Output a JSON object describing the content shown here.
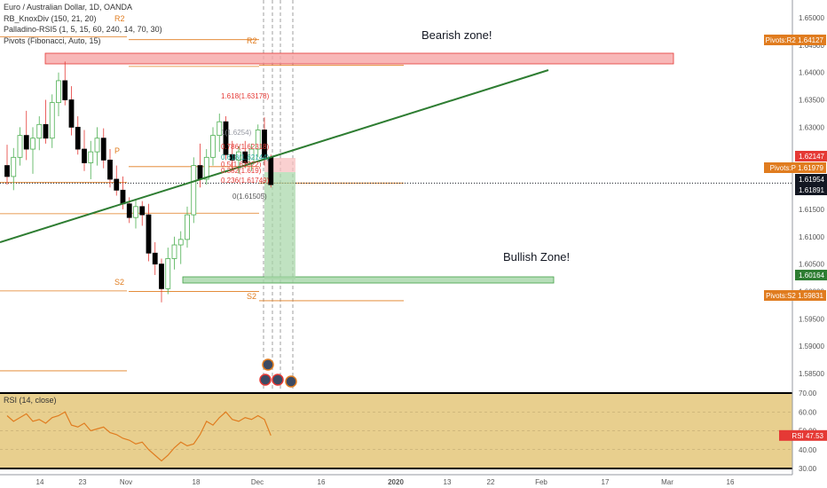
{
  "header": {
    "title": "Euro / Australian Dollar, 1D, OANDA",
    "indicators": [
      "RB_KnoxDiv (150, 21, 20)",
      "Palladino-RSI5 (1, 5, 15, 60, 240, 14, 70, 30)",
      "Pivots (Fibonacci, Auto, 15)"
    ]
  },
  "annotations": {
    "bearish": "Bearish zone!",
    "bullish": "Bullish Zone!"
  },
  "pivots": {
    "r2_left": "R2",
    "r2_right": "R2",
    "p": "P",
    "s2_left": "S2",
    "s2_right": "S2"
  },
  "fib_labels": [
    "1.618(1.63178)",
    "1(1.6254)",
    "0.786(1.62318)",
    "0.618(1.62144)",
    "0.5(1.62022)",
    "0.382(1.619)",
    "0.236(1.61749)",
    "0(1.61505)"
  ],
  "price_axis": {
    "ticks": [
      "1.65000",
      "1.64500",
      "1.64000",
      "1.63500",
      "1.63000",
      "1.62500",
      "1.62000",
      "1.61500",
      "1.61000",
      "1.60500",
      "1.60000",
      "1.59500",
      "1.59000",
      "1.58500"
    ],
    "badges": [
      {
        "text": "Pivots:R2  1.64127",
        "color": "#e07c1f"
      },
      {
        "text": "1.62147",
        "color": "#e53935"
      },
      {
        "text": "Pivots:P  1.61979",
        "color": "#e07c1f"
      },
      {
        "text": "1.61954",
        "color": "#131722"
      },
      {
        "text": "1.61891",
        "color": "#131722"
      },
      {
        "text": "1.60164",
        "color": "#2e7d32"
      },
      {
        "text": "Pivots:S2  1.59831",
        "color": "#e07c1f"
      }
    ]
  },
  "rsi": {
    "label": "RSI (14, close)",
    "ticks": [
      "70.00",
      "60.00",
      "50.00",
      "40.00",
      "30.00"
    ],
    "badge": "RSI  47.53",
    "badge_color": "#e53935"
  },
  "time_axis": {
    "labels": [
      "14",
      "23",
      "Nov",
      "18",
      "Dec",
      "16",
      "2020",
      "13",
      "22",
      "Feb",
      "17",
      "Mar",
      "16"
    ]
  },
  "chart_data": {
    "type": "candlestick",
    "symbol": "Euro / Australian Dollar",
    "ylim": [
      1.5825,
      1.6545
    ],
    "candles": [
      [
        1.623,
        1.6268,
        1.6195,
        1.621
      ],
      [
        1.621,
        1.6262,
        1.6185,
        1.6245
      ],
      [
        1.6245,
        1.63,
        1.623,
        1.6285
      ],
      [
        1.6285,
        1.633,
        1.624,
        1.626
      ],
      [
        1.626,
        1.63,
        1.6215,
        1.628
      ],
      [
        1.628,
        1.632,
        1.6258,
        1.6305
      ],
      [
        1.6305,
        1.635,
        1.627,
        1.628
      ],
      [
        1.628,
        1.636,
        1.6262,
        1.6345
      ],
      [
        1.6345,
        1.64,
        1.632,
        1.6385
      ],
      [
        1.6385,
        1.642,
        1.634,
        1.635
      ],
      [
        1.635,
        1.6375,
        1.6285,
        1.63
      ],
      [
        1.63,
        1.632,
        1.625,
        1.626
      ],
      [
        1.626,
        1.6295,
        1.622,
        1.6235
      ],
      [
        1.6235,
        1.6275,
        1.6205,
        1.6255
      ],
      [
        1.6255,
        1.63,
        1.623,
        1.628
      ],
      [
        1.628,
        1.6298,
        1.6225,
        1.624
      ],
      [
        1.624,
        1.626,
        1.619,
        1.6205
      ],
      [
        1.6205,
        1.623,
        1.6175,
        1.6185
      ],
      [
        1.6185,
        1.621,
        1.615,
        1.616
      ],
      [
        1.616,
        1.6172,
        1.6125,
        1.6135
      ],
      [
        1.6135,
        1.6168,
        1.6115,
        1.6155
      ],
      [
        1.6155,
        1.6165,
        1.612,
        1.614
      ],
      [
        1.614,
        1.616,
        1.6055,
        1.607
      ],
      [
        1.607,
        1.609,
        1.603,
        1.605
      ],
      [
        1.605,
        1.606,
        1.598,
        1.6005
      ],
      [
        1.6005,
        1.608,
        1.5995,
        1.606
      ],
      [
        1.606,
        1.61,
        1.604,
        1.6085
      ],
      [
        1.6085,
        1.611,
        1.605,
        1.6095
      ],
      [
        1.6095,
        1.6155,
        1.608,
        1.614
      ],
      [
        1.614,
        1.6245,
        1.6125,
        1.623
      ],
      [
        1.623,
        1.627,
        1.619,
        1.6205
      ],
      [
        1.6205,
        1.626,
        1.6195,
        1.6245
      ],
      [
        1.6245,
        1.63,
        1.623,
        1.6285
      ],
      [
        1.6285,
        1.6325,
        1.6255,
        1.631
      ],
      [
        1.631,
        1.632,
        1.624,
        1.625
      ],
      [
        1.625,
        1.6275,
        1.622,
        1.624
      ],
      [
        1.624,
        1.6265,
        1.6215,
        1.6255
      ],
      [
        1.6255,
        1.6275,
        1.6225,
        1.6235
      ],
      [
        1.6235,
        1.627,
        1.622,
        1.626
      ],
      [
        1.626,
        1.6305,
        1.6245,
        1.6295
      ],
      [
        1.6295,
        1.6318,
        1.623,
        1.6245
      ],
      [
        1.6245,
        1.625,
        1.619,
        1.6195
      ]
    ],
    "trendline": {
      "from": [
        0,
        1.609
      ],
      "to": [
        69,
        1.636
      ]
    },
    "zones": [
      {
        "name": "bearish",
        "from": [
          3,
          1.64
        ],
        "to": [
          82,
          1.6375
        ]
      },
      {
        "name": "bullish",
        "from": [
          23,
          1.6017
        ],
        "to": [
          67,
          1.6011
        ]
      }
    ],
    "pivot_levels": {
      "R2": 1.64127,
      "P": 1.61979,
      "S2": 1.59831
    },
    "rsi": {
      "ylim": [
        30,
        70
      ],
      "values": [
        58,
        55,
        57,
        59,
        55,
        56,
        54,
        57,
        58,
        60,
        53,
        52,
        54,
        50,
        51,
        52,
        49,
        48,
        46,
        45,
        43,
        44,
        40,
        37,
        34,
        37,
        41,
        44,
        42,
        43,
        48,
        55,
        53,
        57,
        60,
        56,
        55,
        57,
        56,
        58,
        56,
        47.5
      ]
    }
  }
}
